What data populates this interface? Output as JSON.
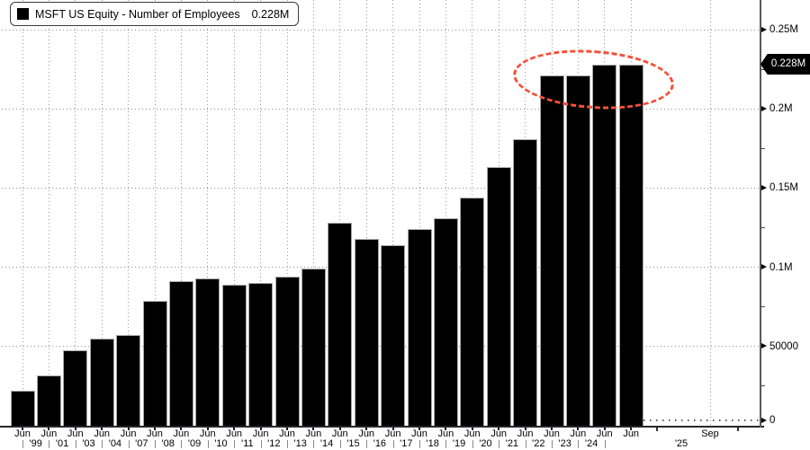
{
  "legend": {
    "marker_color": "#000000",
    "label": "MSFT US Equity - Number of Employees",
    "value": "0.228M"
  },
  "y_axis": {
    "side": "right",
    "ticks": [
      {
        "label": "0.25M",
        "value": 250000
      },
      {
        "label": "0.2M",
        "value": 200000
      },
      {
        "label": "0.15M",
        "value": 150000
      },
      {
        "label": "0.1M",
        "value": 100000
      },
      {
        "label": "50000",
        "value": 50000
      },
      {
        "label": "0",
        "value": 0
      }
    ],
    "minor_tick_values": [
      225000,
      175000,
      125000,
      75000,
      25000
    ],
    "last_value_badge": {
      "label": "0.228M",
      "value": 228000,
      "bg": "#000000",
      "fg": "#ffffff"
    }
  },
  "x_axis": {
    "bar_month_label": "Jun",
    "end_month_label": "Sep",
    "end_year_label": "'25",
    "year_labels": [
      "'99",
      "'01",
      "'03",
      "'04",
      "'07",
      "'08",
      "'09",
      "'10",
      "'11",
      "'12",
      "'13",
      "'14",
      "'15",
      "'16",
      "'17",
      "'18",
      "'19",
      "'20",
      "'21",
      "'22",
      "'23",
      "'24"
    ]
  },
  "chart_data": {
    "type": "bar",
    "title": "MSFT US Equity - Number of Employees",
    "unit": "employees",
    "bar_color": "#000000",
    "tick_month_labels": [
      "Jun",
      "Jun",
      "Jun",
      "Jun",
      "Jun",
      "Jun",
      "Jun",
      "Jun",
      "Jun",
      "Jun",
      "Jun",
      "Jun",
      "Jun",
      "Jun",
      "Jun",
      "Jun",
      "Jun",
      "Jun",
      "Jun",
      "Jun",
      "Jun",
      "Jun",
      "Jun",
      "Jun"
    ],
    "interval_year_labels": [
      "'99",
      "'01",
      "'03",
      "'04",
      "'07",
      "'08",
      "'09",
      "'10",
      "'11",
      "'12",
      "'13",
      "'14",
      "'15",
      "'16",
      "'17",
      "'18",
      "'19",
      "'20",
      "'21",
      "'22",
      "'23",
      "'24"
    ],
    "values": [
      22000,
      31500,
      47600,
      55000,
      57000,
      79000,
      91000,
      93000,
      89000,
      90000,
      94000,
      99000,
      128000,
      118000,
      114000,
      124000,
      131000,
      144000,
      163000,
      181000,
      221000,
      221000,
      228000,
      228000
    ],
    "ylim": [
      0,
      268000
    ],
    "grid": true,
    "legend_position": "top-left",
    "last_value_label": "0.228M",
    "annotation": {
      "shape": "dashed-ellipse",
      "color": "#f4503a",
      "highlights": "last four bars"
    }
  }
}
